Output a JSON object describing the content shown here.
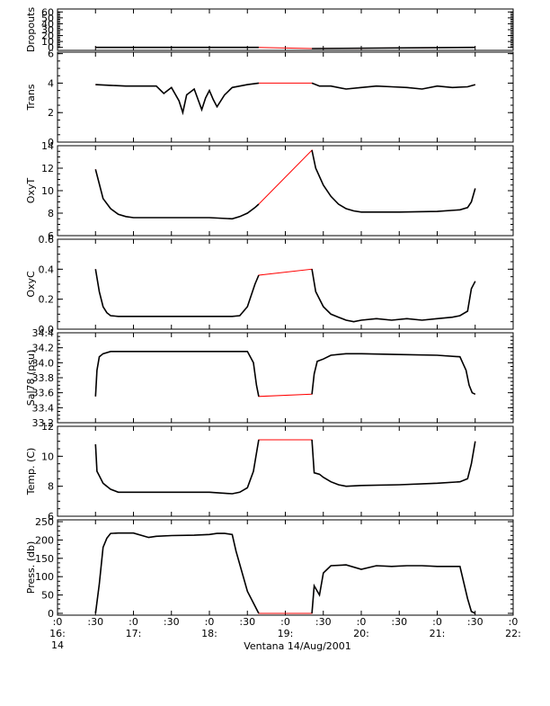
{
  "chart_data": {
    "type": "line",
    "xlabel": "Ventana 14/Aug/2001",
    "x_ticks": [
      {
        "top": ":0",
        "bottom": "16:"
      },
      {
        "top": ":30",
        "bottom": ""
      },
      {
        "top": ":0",
        "bottom": "17:"
      },
      {
        "top": ":30",
        "bottom": ""
      },
      {
        "top": ":0",
        "bottom": "18:"
      },
      {
        "top": ":30",
        "bottom": ""
      },
      {
        "top": ":0",
        "bottom": "19:"
      },
      {
        "top": ":30",
        "bottom": ""
      },
      {
        "top": ":0",
        "bottom": "20:"
      },
      {
        "top": ":30",
        "bottom": ""
      },
      {
        "top": ":0",
        "bottom": "21:"
      },
      {
        "top": ":30",
        "bottom": ""
      },
      {
        "top": ":0",
        "bottom": "22:"
      }
    ],
    "x_extra_label": "14",
    "xlim": [
      0,
      6
    ],
    "colors": {
      "data": "#000000",
      "raw": "#ff0000"
    },
    "panels": [
      {
        "ylabel": "Dropouts",
        "yticks": [
          "60",
          "50",
          "40",
          "30",
          "20",
          "10",
          "0"
        ],
        "ytick_values": [
          60,
          50,
          40,
          30,
          20,
          10,
          0
        ],
        "ylim": [
          -5,
          65
        ],
        "x": [
          0.5,
          2.65,
          3.35,
          5.5
        ],
        "y": [
          0,
          0,
          -2,
          0
        ]
      },
      {
        "ylabel": "Trans",
        "yticks": [
          "6",
          "4",
          "2",
          "0"
        ],
        "ytick_values": [
          6,
          4,
          2,
          0
        ],
        "ylim": [
          0,
          6.1
        ],
        "x": [
          0.5,
          0.7,
          0.9,
          1.1,
          1.3,
          1.4,
          1.5,
          1.6,
          1.65,
          1.7,
          1.8,
          1.9,
          1.95,
          2.0,
          2.05,
          2.1,
          2.2,
          2.3,
          2.4,
          2.5,
          2.65,
          3.35,
          3.45,
          3.6,
          3.8,
          4.0,
          4.2,
          4.4,
          4.6,
          4.8,
          5.0,
          5.2,
          5.4,
          5.5
        ],
        "y": [
          3.9,
          3.85,
          3.8,
          3.8,
          3.8,
          3.3,
          3.7,
          2.8,
          2.0,
          3.2,
          3.6,
          2.2,
          3.0,
          3.5,
          2.9,
          2.4,
          3.2,
          3.7,
          3.8,
          3.9,
          4.0,
          4.0,
          3.8,
          3.8,
          3.6,
          3.7,
          3.8,
          3.75,
          3.7,
          3.6,
          3.8,
          3.7,
          3.75,
          3.9
        ]
      },
      {
        "ylabel": "OxyT",
        "yticks": [
          "14",
          "12",
          "10",
          "8",
          "6"
        ],
        "ytick_values": [
          14,
          12,
          10,
          8,
          6
        ],
        "ylim": [
          6,
          14
        ],
        "x": [
          0.5,
          0.55,
          0.6,
          0.7,
          0.8,
          0.9,
          1.0,
          1.5,
          2.0,
          2.3,
          2.4,
          2.5,
          2.6,
          2.65,
          3.35,
          3.4,
          3.5,
          3.6,
          3.7,
          3.8,
          3.9,
          4.0,
          4.5,
          5.0,
          5.3,
          5.4,
          5.45,
          5.5
        ],
        "y": [
          11.9,
          10.6,
          9.3,
          8.4,
          7.9,
          7.7,
          7.6,
          7.6,
          7.6,
          7.5,
          7.7,
          8.0,
          8.5,
          8.8,
          13.6,
          12.0,
          10.5,
          9.5,
          8.8,
          8.4,
          8.2,
          8.1,
          8.1,
          8.15,
          8.3,
          8.5,
          9.0,
          10.2
        ]
      },
      {
        "ylabel": "OxyC",
        "yticks": [
          "0.6",
          "0.4",
          "0.2",
          "0.0"
        ],
        "ytick_values": [
          0.6,
          0.4,
          0.2,
          0.0
        ],
        "ylim": [
          0,
          0.6
        ],
        "x": [
          0.5,
          0.55,
          0.6,
          0.65,
          0.7,
          0.8,
          1.0,
          1.5,
          2.0,
          2.3,
          2.4,
          2.5,
          2.6,
          2.65,
          3.35,
          3.4,
          3.5,
          3.6,
          3.7,
          3.8,
          3.9,
          4.0,
          4.2,
          4.4,
          4.6,
          4.8,
          5.0,
          5.2,
          5.3,
          5.4,
          5.45,
          5.5
        ],
        "y": [
          0.4,
          0.25,
          0.15,
          0.11,
          0.09,
          0.085,
          0.085,
          0.085,
          0.085,
          0.085,
          0.09,
          0.15,
          0.3,
          0.36,
          0.4,
          0.25,
          0.15,
          0.1,
          0.08,
          0.06,
          0.05,
          0.06,
          0.07,
          0.06,
          0.07,
          0.06,
          0.07,
          0.08,
          0.09,
          0.12,
          0.27,
          0.32
        ]
      },
      {
        "ylabel": "Sal78 (psu)",
        "yticks": [
          "34.4",
          "34.2",
          "34.0",
          "33.8",
          "33.6",
          "33.4",
          "33.2"
        ],
        "ytick_values": [
          34.4,
          34.2,
          34.0,
          33.8,
          33.6,
          33.4,
          33.2
        ],
        "ylim": [
          33.2,
          34.4
        ],
        "x": [
          0.5,
          0.52,
          0.55,
          0.6,
          0.7,
          0.8,
          1.0,
          1.5,
          2.0,
          2.5,
          2.58,
          2.62,
          2.65,
          3.35,
          3.38,
          3.42,
          3.5,
          3.6,
          3.8,
          4.0,
          4.5,
          5.0,
          5.3,
          5.38,
          5.42,
          5.46,
          5.5
        ],
        "y": [
          33.55,
          33.9,
          34.08,
          34.12,
          34.15,
          34.15,
          34.15,
          34.15,
          34.15,
          34.15,
          34.0,
          33.7,
          33.55,
          33.58,
          33.85,
          34.02,
          34.05,
          34.1,
          34.12,
          34.12,
          34.11,
          34.1,
          34.08,
          33.9,
          33.7,
          33.6,
          33.58
        ]
      },
      {
        "ylabel": "Temp. (C)",
        "yticks": [
          "12",
          "10",
          "8",
          "6"
        ],
        "ytick_values": [
          12,
          10,
          8,
          6
        ],
        "ylim": [
          6,
          12
        ],
        "x": [
          0.5,
          0.52,
          0.55,
          0.6,
          0.65,
          0.7,
          0.8,
          1.0,
          1.5,
          2.0,
          2.3,
          2.4,
          2.5,
          2.58,
          2.63,
          2.65,
          3.35,
          3.38,
          3.45,
          3.5,
          3.6,
          3.7,
          3.8,
          4.0,
          4.5,
          5.0,
          5.3,
          5.4,
          5.45,
          5.5
        ],
        "y": [
          10.8,
          9.0,
          8.7,
          8.2,
          8.0,
          7.8,
          7.6,
          7.6,
          7.6,
          7.6,
          7.5,
          7.6,
          7.9,
          9.0,
          10.5,
          11.1,
          11.1,
          8.9,
          8.8,
          8.6,
          8.3,
          8.1,
          8.0,
          8.05,
          8.1,
          8.2,
          8.3,
          8.5,
          9.5,
          11.0
        ]
      },
      {
        "ylabel": "Press. (db)",
        "yticks": [
          "250",
          "200",
          "150",
          "100",
          "50",
          "0"
        ],
        "ytick_values": [
          250,
          200,
          150,
          100,
          50,
          0
        ],
        "ylim": [
          -5,
          255
        ],
        "x": [
          0.5,
          0.55,
          0.6,
          0.65,
          0.7,
          0.8,
          1.0,
          1.2,
          1.3,
          1.5,
          1.8,
          2.0,
          2.1,
          2.2,
          2.3,
          2.35,
          2.5,
          2.65,
          3.35,
          3.38,
          3.45,
          3.5,
          3.6,
          3.8,
          4.0,
          4.2,
          4.4,
          4.6,
          4.8,
          5.0,
          5.2,
          5.3,
          5.4,
          5.45,
          5.5
        ],
        "y": [
          0,
          80,
          180,
          205,
          218,
          219,
          219,
          207,
          210,
          212,
          213,
          215,
          218,
          218,
          215,
          170,
          60,
          0,
          0,
          75,
          50,
          110,
          130,
          132,
          120,
          130,
          128,
          130,
          130,
          128,
          128,
          128,
          40,
          5,
          0
        ],
        "raw_floor_segment": {
          "x": [
            2.65,
            3.35
          ],
          "y": [
            0,
            0
          ]
        }
      }
    ]
  }
}
